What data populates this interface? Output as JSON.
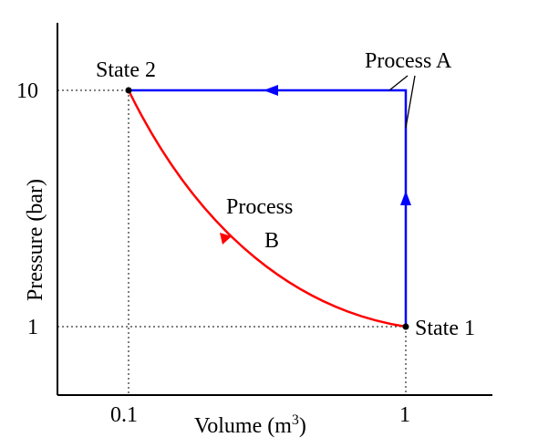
{
  "chart_data": {
    "type": "line",
    "xlabel": "Volume (m",
    "xlabel_sup": "3",
    "xlabel_close": ")",
    "ylabel": "Pressure (bar)",
    "x_ticks": [
      "0.1",
      "1"
    ],
    "y_ticks": [
      "10",
      "1"
    ],
    "states": [
      {
        "name": "State 1",
        "volume": 1,
        "pressure": 1
      },
      {
        "name": "State 2",
        "volume": 0.1,
        "pressure": 10
      }
    ],
    "processes": [
      {
        "name": "Process A",
        "color": "#0000ff",
        "path_points": [
          [
            1,
            1
          ],
          [
            1,
            10
          ],
          [
            0.1,
            10
          ]
        ],
        "description_direction": "State 1 to State 2"
      },
      {
        "name_line1": "Process",
        "name_line2": "B",
        "color": "#ff0000",
        "curve": "hyperbola",
        "from": [
          1,
          1
        ],
        "to": [
          0.1,
          10
        ]
      }
    ]
  }
}
